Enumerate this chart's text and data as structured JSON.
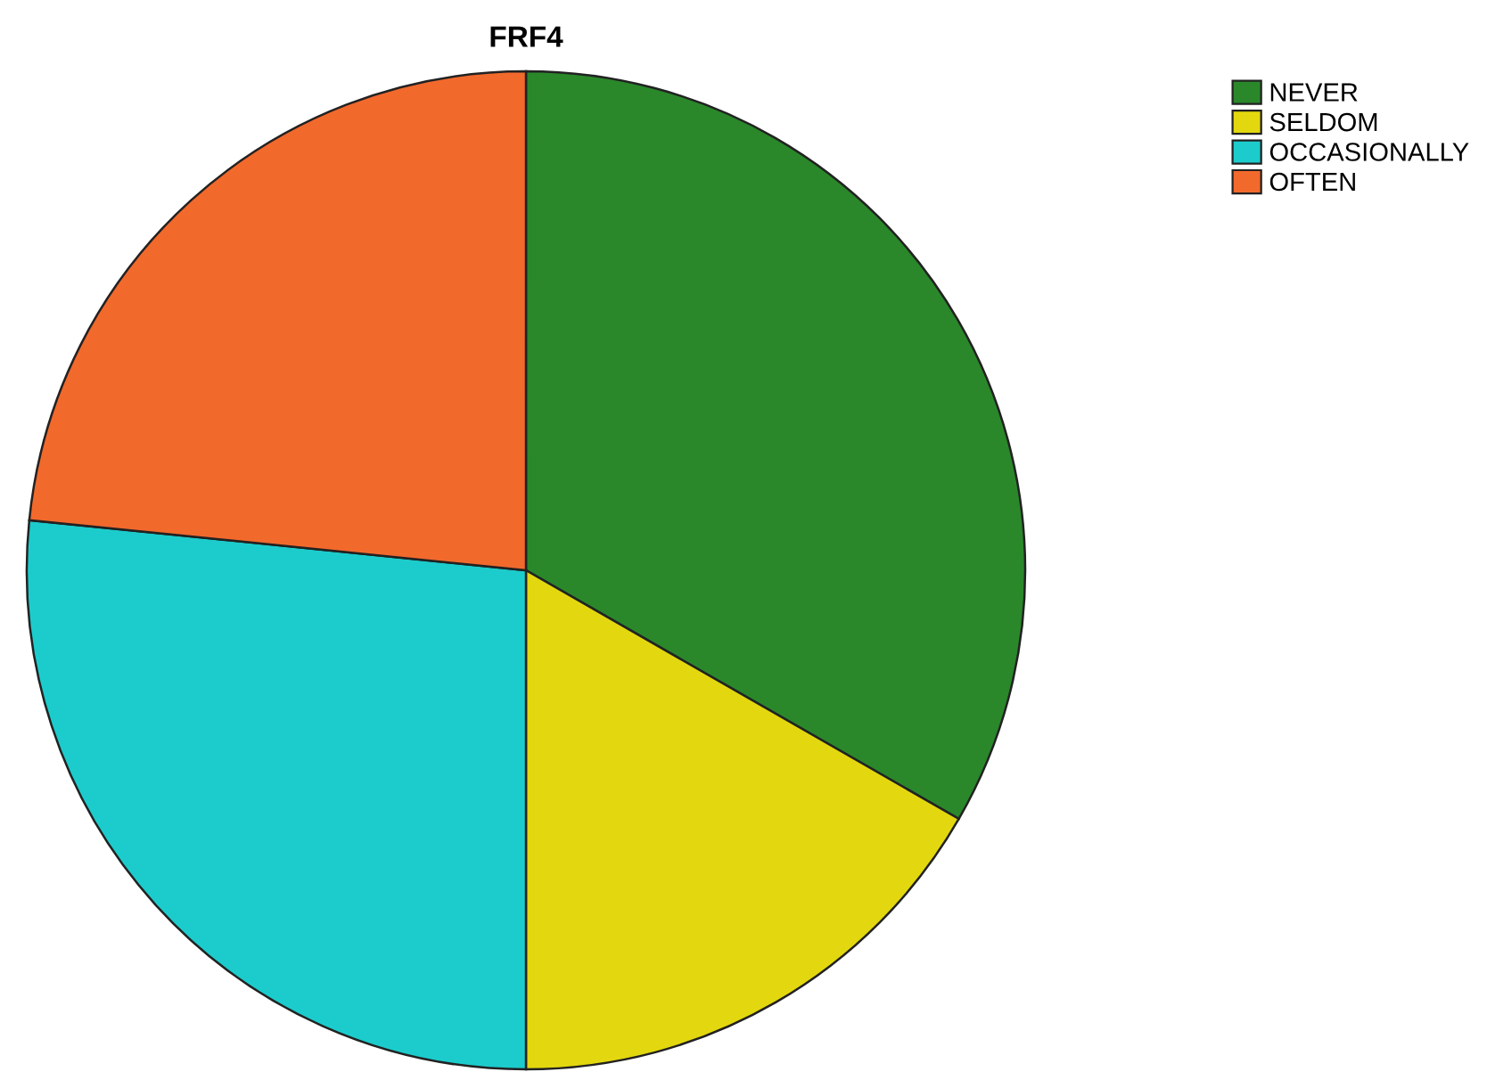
{
  "chart_data": {
    "type": "pie",
    "title": "FRF4",
    "categories": [
      "NEVER",
      "SELDOM",
      "OCCASIONALLY",
      "OFTEN"
    ],
    "values": [
      33.3,
      16.7,
      26.6,
      23.4
    ],
    "colors": [
      "#2a882a",
      "#e3d80f",
      "#1ccccc",
      "#f2692c"
    ],
    "legend": "top right"
  }
}
